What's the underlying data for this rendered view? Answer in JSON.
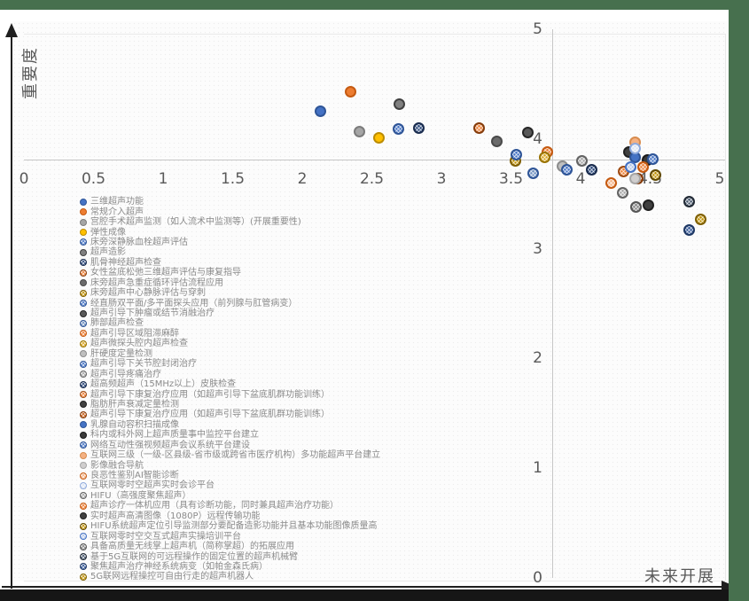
{
  "frame": {
    "border_green": "#47704E",
    "border_dark": "#161616"
  },
  "axes": {
    "y_title": "重要度",
    "x_title": "未来开展",
    "x_ticks": [
      "0",
      "0.5",
      "1",
      "1.5",
      "2",
      "2.5",
      "3",
      "3.5",
      "4",
      "4.5",
      "5"
    ],
    "y_ticks": [
      "5",
      "4",
      "3",
      "2",
      "1",
      "0"
    ],
    "x_range": [
      0,
      5
    ],
    "y_range": [
      0,
      5
    ],
    "axes_cross_at": [
      3.8,
      3.8
    ]
  },
  "chart_data": {
    "type": "scatter",
    "title": "",
    "xlabel": "未来开展",
    "ylabel": "重要度",
    "xlim": [
      0,
      5
    ],
    "ylim": [
      0,
      5
    ],
    "grid": false,
    "legend_position": "bottom-left",
    "series": [
      {
        "name": "三维超声功能",
        "x": 2.13,
        "y": 4.25,
        "fill": "#4472C4",
        "border": "#2F5597",
        "pattern": false
      },
      {
        "name": "常规介入超声",
        "x": 2.35,
        "y": 4.43,
        "fill": "#ED7D31",
        "border": "#C55A11",
        "pattern": false
      },
      {
        "name": "宫腔手术超声监测（如人流术中监测等）(开展重要性)",
        "x": 2.41,
        "y": 4.07,
        "fill": "#A5A5A5",
        "border": "#7B7B7B",
        "pattern": false
      },
      {
        "name": "弹性成像",
        "x": 2.55,
        "y": 4.01,
        "fill": "#FFC000",
        "border": "#BC8C00",
        "pattern": false
      },
      {
        "name": "床旁深静脉血栓超声评估",
        "x": 2.69,
        "y": 4.09,
        "fill": "#4472C4",
        "border": "#2F5597",
        "pattern": true
      },
      {
        "name": "超声造影",
        "x": 2.7,
        "y": 4.32,
        "fill": "#808080",
        "border": "#404040",
        "pattern": false
      },
      {
        "name": "肌骨神经超声检查",
        "x": 2.84,
        "y": 4.1,
        "fill": "#264478",
        "border": "#1A2C4E",
        "pattern": true
      },
      {
        "name": "女性盆底松弛三维超声评估与康复指导",
        "x": 3.27,
        "y": 4.1,
        "fill": "#ED7D31",
        "border": "#843C0C",
        "pattern": true
      },
      {
        "name": "床旁超声急重症循环评估流程应用",
        "x": 3.4,
        "y": 3.98,
        "fill": "#6B6B6B",
        "border": "#4A4A4A",
        "pattern": false
      },
      {
        "name": "床旁超声中心静脉评估与穿刺",
        "x": 3.53,
        "y": 3.8,
        "fill": "#BF8F00",
        "border": "#7F5F00",
        "pattern": true
      },
      {
        "name": "经直肠双平面/多平面探头应用（前列腺与肛管病变）",
        "x": 3.54,
        "y": 3.86,
        "fill": "#4472C4",
        "border": "#2F5597",
        "pattern": true
      },
      {
        "name": "超声引导下肿瘤或结节消融治疗",
        "x": 3.62,
        "y": 4.06,
        "fill": "#595959",
        "border": "#262626",
        "pattern": false
      },
      {
        "name": "肺部超声检查",
        "x": 3.66,
        "y": 3.69,
        "fill": "#6C8EBF",
        "border": "#2F5597",
        "pattern": true
      },
      {
        "name": "超声引导区域阻滞麻醉",
        "x": 3.76,
        "y": 3.88,
        "fill": "#ED7D31",
        "border": "#C55A11",
        "pattern": true
      },
      {
        "name": "超声微探头腔内超声检查",
        "x": 3.74,
        "y": 3.83,
        "fill": "#D9A521",
        "border": "#997300",
        "pattern": true
      },
      {
        "name": "肝硬度定量检测",
        "x": 3.87,
        "y": 3.75,
        "fill": "#BFBFBF",
        "border": "#8C8C8C",
        "pattern": false
      },
      {
        "name": "超声引导下关节腔封闭治疗",
        "x": 3.9,
        "y": 3.72,
        "fill": "#4472C4",
        "border": "#2F5597",
        "pattern": true
      },
      {
        "name": "超声引导疼痛治疗",
        "x": 4.01,
        "y": 3.8,
        "fill": "#A5A5A5",
        "border": "#636363",
        "pattern": true
      },
      {
        "name": "超高频超声（15MHz以上）皮肤检查",
        "x": 4.08,
        "y": 3.72,
        "fill": "#264478",
        "border": "#1A2C4E",
        "pattern": true
      },
      {
        "name": "超声引导下康复治疗应用（如超声引导下盆底肌群功能训练）",
        "x": 4.31,
        "y": 3.7,
        "fill": "#ED7D31",
        "border": "#9E4D16",
        "pattern": true
      },
      {
        "name": "脂肪肝声衰减定量检测",
        "x": 4.35,
        "y": 3.88,
        "fill": "#404040",
        "border": "#202020",
        "pattern": false
      },
      {
        "name": "超声引导下康复治疗应用（如超声引导下盆底肌群功能训练）",
        "x": 4.41,
        "y": 3.64,
        "fill": "#C55A11",
        "border": "#843C0C",
        "pattern": true
      },
      {
        "name": "乳腺自动容积扫描成像",
        "x": 4.39,
        "y": 3.83,
        "fill": "#4472C4",
        "border": "#2F5597",
        "pattern": false
      },
      {
        "name": "科内或科外网上超声质量事中监控平台建立",
        "x": 4.48,
        "y": 3.81,
        "fill": "#3B3B3B",
        "border": "#1A1A1A",
        "pattern": false
      },
      {
        "name": "网络互动性强视频超声会议系统平台建设",
        "x": 4.52,
        "y": 3.82,
        "fill": "#4472C4",
        "border": "#2F5597",
        "pattern": true
      },
      {
        "name": "互联网三级（一级-区县级-省市级或跨省市医疗机构）多功能超声平台建立",
        "x": 4.39,
        "y": 3.97,
        "fill": "#F4B183",
        "border": "#D88C4E",
        "pattern": false
      },
      {
        "name": "影像融合导航",
        "x": 4.39,
        "y": 3.64,
        "fill": "#D0CECE",
        "border": "#A6A6A6",
        "pattern": false
      },
      {
        "name": "良恶性鉴别AI智能诊断",
        "x": 4.22,
        "y": 3.6,
        "fill": "#F4B183",
        "border": "#C55A11",
        "pattern": true
      },
      {
        "name": "互联网零时空超声实时会诊平台",
        "x": 4.39,
        "y": 3.91,
        "fill": "#DAE3F3",
        "border": "#8FAADC",
        "pattern": true
      },
      {
        "name": "HIFU（高强度聚焦超声）",
        "x": 4.3,
        "y": 3.51,
        "fill": "#A5A5A5",
        "border": "#636363",
        "pattern": true
      },
      {
        "name": "超声诊疗一体机应用（具有诊断功能，同时兼具超声治疗功能）",
        "x": 4.45,
        "y": 3.74,
        "fill": "#ED7D31",
        "border": "#C55A11",
        "pattern": true
      },
      {
        "name": "实时超声高清图像（1080P）远程传输功能",
        "x": 4.49,
        "y": 3.4,
        "fill": "#404040",
        "border": "#202020",
        "pattern": false
      },
      {
        "name": "HIFU系统超声定位引导监测部分要配备造影功能并且基本功能图像质量高",
        "x": 4.54,
        "y": 3.67,
        "fill": "#BF8F00",
        "border": "#604800",
        "pattern": true
      },
      {
        "name": "互联网零时空交互式超声实操培训平台",
        "x": 4.36,
        "y": 3.74,
        "fill": "#B4C7E7",
        "border": "#4472C4",
        "pattern": true
      },
      {
        "name": "具备高质量无线掌上超声机（简称掌超）的拓展应用",
        "x": 4.4,
        "y": 3.38,
        "fill": "#7F7F7F",
        "border": "#565656",
        "pattern": true
      },
      {
        "name": "基于5G互联网的可远程操作的固定位置的超声机械臂",
        "x": 4.78,
        "y": 3.43,
        "fill": "#44546A",
        "border": "#222A35",
        "pattern": true
      },
      {
        "name": "聚焦超声治疗神经系统病变（如帕金森氏病）",
        "x": 4.78,
        "y": 3.17,
        "fill": "#2E5395",
        "border": "#1F3864",
        "pattern": true
      },
      {
        "name": "5G联网远程操控可自由行走的超声机器人",
        "x": 4.86,
        "y": 3.27,
        "fill": "#BF9000",
        "border": "#7F6000",
        "pattern": true
      }
    ]
  }
}
